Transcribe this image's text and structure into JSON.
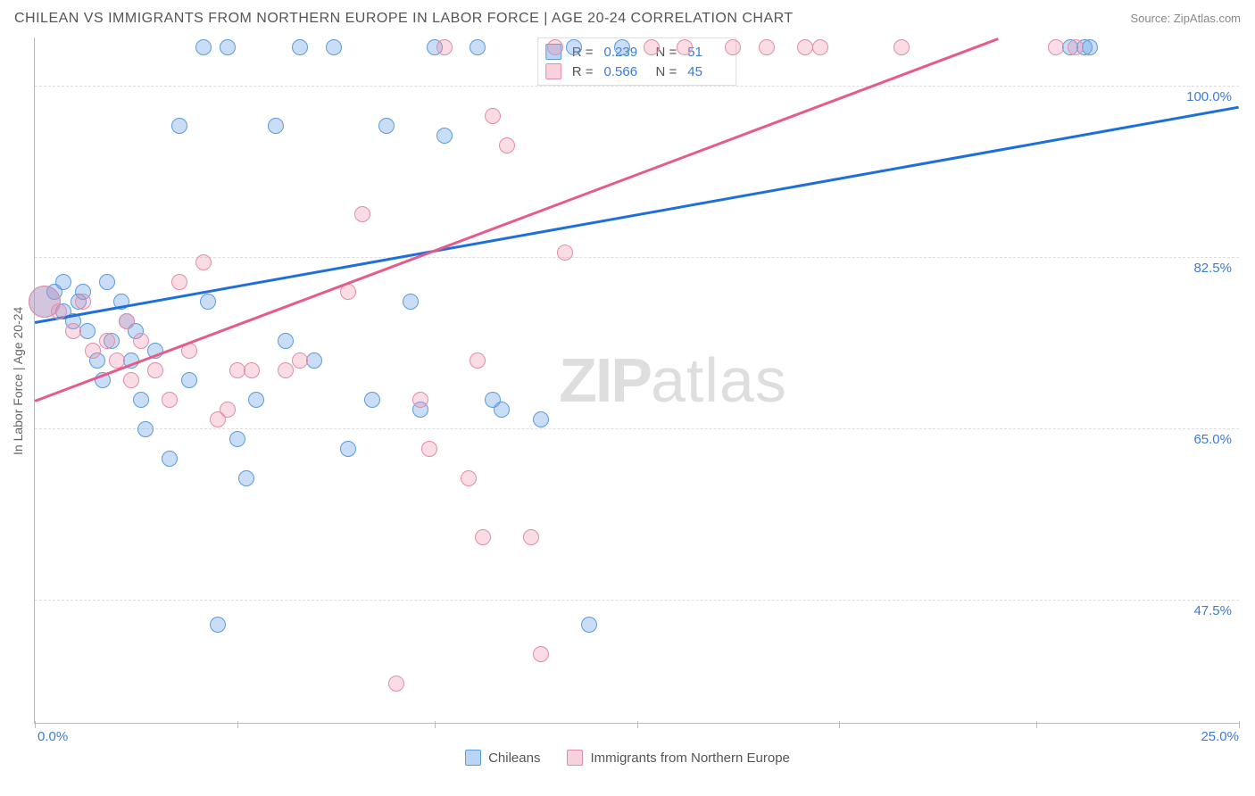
{
  "header": {
    "title": "CHILEAN VS IMMIGRANTS FROM NORTHERN EUROPE IN LABOR FORCE | AGE 20-24 CORRELATION CHART",
    "source": "Source: ZipAtlas.com"
  },
  "watermark": {
    "prefix": "ZIP",
    "suffix": "atlas"
  },
  "chart": {
    "type": "scatter",
    "ylabel": "In Labor Force | Age 20-24",
    "background_color": "#ffffff",
    "grid_color": "#dddddd",
    "axis_color": "#bbbbbb",
    "tick_label_color": "#3b7bd6",
    "xlim": [
      0,
      25
    ],
    "ylim": [
      35,
      105
    ],
    "x_ticks": [
      0,
      4.2,
      8.3,
      12.5,
      16.7,
      20.8,
      25
    ],
    "x_labels": {
      "min": "0.0%",
      "max": "25.0%"
    },
    "y_gridlines": [
      47.5,
      65.0,
      82.5,
      100.0
    ],
    "y_labels": [
      "47.5%",
      "65.0%",
      "82.5%",
      "100.0%"
    ],
    "marker_radius": 9,
    "marker_radius_large": 18,
    "series": [
      {
        "id": "chileans",
        "label": "Chileans",
        "color": "#5a9bdc",
        "fill": "rgba(100,160,230,0.35)",
        "R": 0.239,
        "N": 51,
        "trend": {
          "x0": 0,
          "y0": 76,
          "x1": 25,
          "y1": 98
        },
        "points": [
          [
            0.2,
            78,
            18
          ],
          [
            0.4,
            79
          ],
          [
            0.6,
            77
          ],
          [
            0.6,
            80
          ],
          [
            0.8,
            76
          ],
          [
            0.9,
            78
          ],
          [
            1.0,
            79
          ],
          [
            1.1,
            75
          ],
          [
            1.3,
            72
          ],
          [
            1.4,
            70
          ],
          [
            1.5,
            80
          ],
          [
            1.6,
            74
          ],
          [
            1.8,
            78
          ],
          [
            1.9,
            76
          ],
          [
            2.0,
            72
          ],
          [
            2.1,
            75
          ],
          [
            2.2,
            68
          ],
          [
            2.3,
            65
          ],
          [
            2.5,
            73
          ],
          [
            2.8,
            62
          ],
          [
            3.0,
            96
          ],
          [
            3.2,
            70
          ],
          [
            3.5,
            104
          ],
          [
            3.6,
            78
          ],
          [
            3.8,
            45
          ],
          [
            4.0,
            104
          ],
          [
            4.2,
            64
          ],
          [
            4.4,
            60
          ],
          [
            4.6,
            68
          ],
          [
            5.0,
            96
          ],
          [
            5.2,
            74
          ],
          [
            5.5,
            104
          ],
          [
            5.8,
            72
          ],
          [
            6.2,
            104
          ],
          [
            6.5,
            63
          ],
          [
            7.0,
            68
          ],
          [
            7.3,
            96
          ],
          [
            7.8,
            78
          ],
          [
            8.0,
            67
          ],
          [
            8.3,
            104
          ],
          [
            8.5,
            95
          ],
          [
            9.2,
            104
          ],
          [
            9.5,
            68
          ],
          [
            9.7,
            67
          ],
          [
            10.5,
            66
          ],
          [
            11.2,
            104
          ],
          [
            11.5,
            45
          ],
          [
            12.2,
            104
          ],
          [
            21.5,
            104
          ],
          [
            21.8,
            104
          ],
          [
            21.9,
            104
          ]
        ]
      },
      {
        "id": "northern_europe",
        "label": "Immigrants from Northern Europe",
        "color": "#e38ca7",
        "fill": "rgba(240,140,170,0.30)",
        "R": 0.566,
        "N": 45,
        "trend": {
          "x0": 0,
          "y0": 68,
          "x1": 20,
          "y1": 105
        },
        "points": [
          [
            0.2,
            78,
            18
          ],
          [
            0.5,
            77
          ],
          [
            0.8,
            75
          ],
          [
            1.0,
            78
          ],
          [
            1.2,
            73
          ],
          [
            1.5,
            74
          ],
          [
            1.7,
            72
          ],
          [
            1.9,
            76
          ],
          [
            2.0,
            70
          ],
          [
            2.2,
            74
          ],
          [
            2.5,
            71
          ],
          [
            2.8,
            68
          ],
          [
            3.0,
            80
          ],
          [
            3.2,
            73
          ],
          [
            3.5,
            82
          ],
          [
            3.8,
            66
          ],
          [
            4.0,
            67
          ],
          [
            4.2,
            71
          ],
          [
            4.5,
            71
          ],
          [
            5.2,
            71
          ],
          [
            5.5,
            72
          ],
          [
            6.5,
            79
          ],
          [
            6.8,
            87
          ],
          [
            7.5,
            39
          ],
          [
            8.0,
            68
          ],
          [
            8.2,
            63
          ],
          [
            8.5,
            104
          ],
          [
            9.0,
            60
          ],
          [
            9.2,
            72
          ],
          [
            9.3,
            54
          ],
          [
            9.5,
            97
          ],
          [
            9.8,
            94
          ],
          [
            10.3,
            54
          ],
          [
            10.5,
            42
          ],
          [
            10.8,
            104
          ],
          [
            11.0,
            83
          ],
          [
            12.8,
            104
          ],
          [
            13.5,
            104
          ],
          [
            14.5,
            104
          ],
          [
            15.2,
            104
          ],
          [
            16.0,
            104
          ],
          [
            16.3,
            104
          ],
          [
            18.0,
            104
          ],
          [
            21.2,
            104
          ],
          [
            21.6,
            104
          ]
        ]
      }
    ],
    "legend_stats": {
      "r_label": "R =",
      "n_label": "N ="
    },
    "bottom_legend": true
  }
}
